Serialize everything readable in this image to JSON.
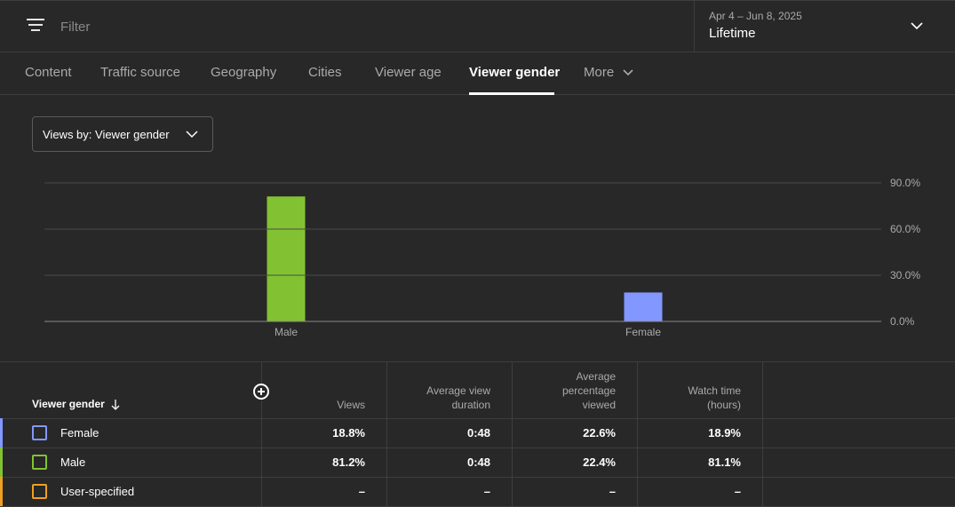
{
  "filter": {
    "placeholder": "Filter",
    "icon": "filter-icon"
  },
  "date": {
    "range": "Apr 4 – Jun 8, 2025",
    "period": "Lifetime"
  },
  "tabs": [
    {
      "label": "Content"
    },
    {
      "label": "Traffic source"
    },
    {
      "label": "Geography"
    },
    {
      "label": "Cities"
    },
    {
      "label": "Viewer age"
    },
    {
      "label": "Viewer gender",
      "active": true
    },
    {
      "label": "More"
    }
  ],
  "views_by": {
    "label": "Views by: Viewer gender"
  },
  "chart_data": {
    "type": "bar",
    "categories": [
      "Male",
      "Female"
    ],
    "values": [
      81.2,
      18.8
    ],
    "colors": [
      "#82c232",
      "#8297ff"
    ],
    "ylim": [
      0,
      90
    ],
    "yticks": [
      "0.0%",
      "30.0%",
      "60.0%",
      "90.0%"
    ],
    "ytick_values": [
      0,
      30,
      60,
      90
    ],
    "grid": true
  },
  "table": {
    "headers": {
      "dimension": "Viewer gender",
      "views": "Views",
      "avg_view_duration": "Average view duration",
      "avg_pct_viewed": "Average percentage viewed",
      "watch_time": "Watch time (hours)"
    },
    "rows": [
      {
        "label": "Female",
        "color": "#8297ff",
        "views": "18.8%",
        "avg_view_duration": "0:48",
        "avg_pct_viewed": "22.6%",
        "watch_time": "18.9%"
      },
      {
        "label": "Male",
        "color": "#82c232",
        "views": "81.2%",
        "avg_view_duration": "0:48",
        "avg_pct_viewed": "22.4%",
        "watch_time": "81.1%"
      },
      {
        "label": "User-specified",
        "color": "#f0a020",
        "views": "–",
        "avg_view_duration": "–",
        "avg_pct_viewed": "–",
        "watch_time": "–"
      }
    ]
  }
}
